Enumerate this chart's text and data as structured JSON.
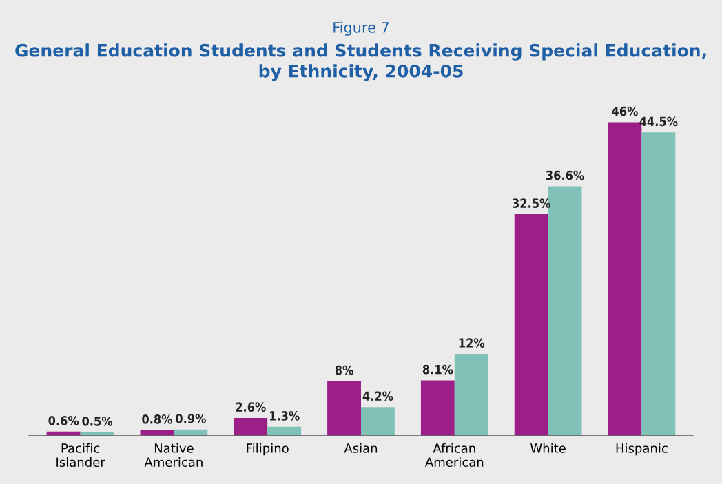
{
  "chart_data": {
    "type": "bar",
    "subtitle": "Figure 7",
    "title": "General Education Students and Students Receiving Special Education,\nby Ethnicity, 2004-05",
    "categories": [
      "Pacific\nIslander",
      "Native\nAmerican",
      "Filipino",
      "Asian",
      "African\nAmerican",
      "White",
      "Hispanic"
    ],
    "series": [
      {
        "color": "#9b1f87",
        "values": [
          0.6,
          0.8,
          2.6,
          8,
          8.1,
          32.5,
          46
        ],
        "value_labels": [
          "0.6%",
          "0.8%",
          "2.6%",
          "8%",
          "8.1%",
          "32.5%",
          "46%"
        ]
      },
      {
        "color": "#80c2b8",
        "values": [
          0.5,
          0.9,
          1.3,
          4.2,
          12,
          36.6,
          44.5
        ],
        "value_labels": [
          "0.5%",
          "0.9%",
          "1.3%",
          "4.2%",
          "12%",
          "36.6%",
          "44.5%"
        ]
      }
    ],
    "grid": false,
    "legend": false,
    "tick_labels": "x"
  }
}
